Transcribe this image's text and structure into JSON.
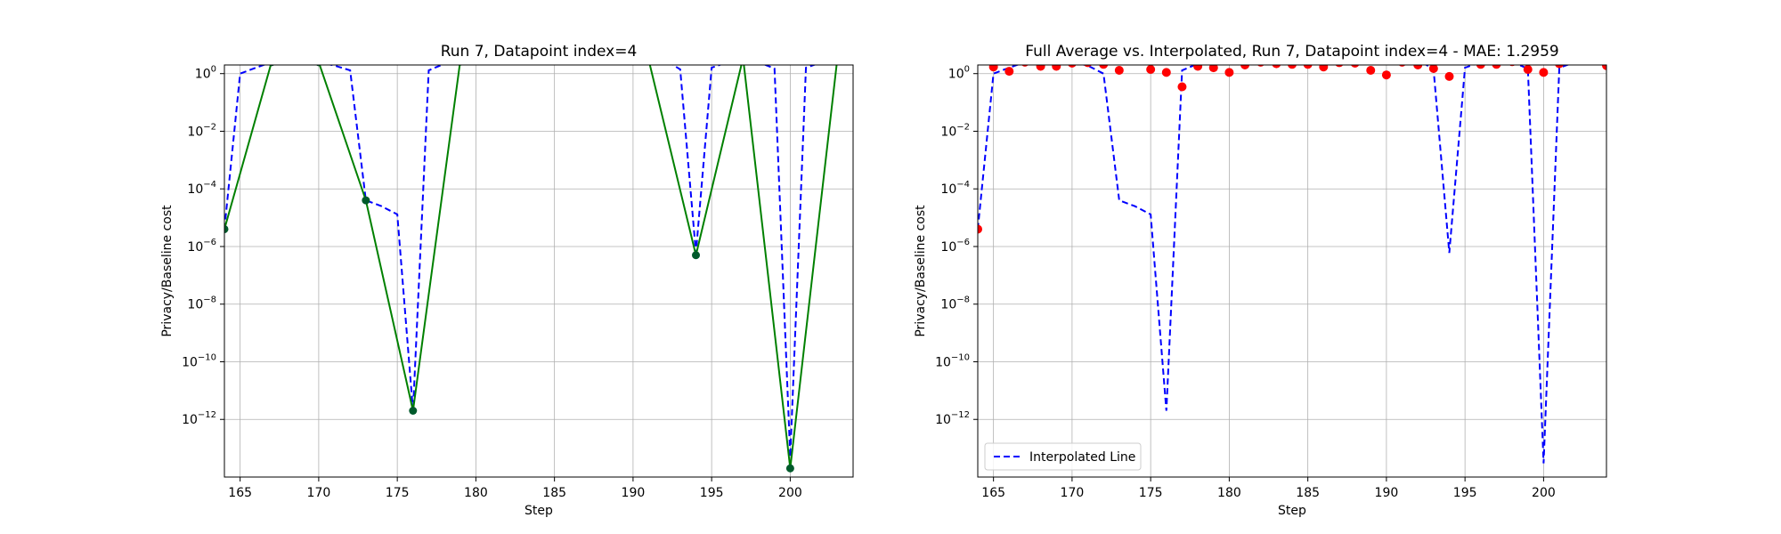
{
  "chart_data": [
    {
      "type": "line",
      "title": "Run 7, Datapoint index=4",
      "xlabel": "Step",
      "ylabel": "Privacy/Baseline cost",
      "xlim": [
        164,
        204
      ],
      "ylim_exponent": [
        -14,
        0.3
      ],
      "yscale": "log",
      "grid": true,
      "x_ticks": [
        165,
        170,
        175,
        180,
        185,
        190,
        195,
        200
      ],
      "y_ticks": [
        {
          "base": "10",
          "exp": "0",
          "value": 1
        },
        {
          "base": "10",
          "exp": "−2",
          "value": 0.01
        },
        {
          "base": "10",
          "exp": "−4",
          "value": 0.0001
        },
        {
          "base": "10",
          "exp": "−6",
          "value": 1e-06
        },
        {
          "base": "10",
          "exp": "−8",
          "value": 1e-08
        },
        {
          "base": "10",
          "exp": "−10",
          "value": 1e-10
        },
        {
          "base": "10",
          "exp": "−12",
          "value": 1e-12
        }
      ],
      "series": [
        {
          "style": "dashed",
          "color": "#0000ff",
          "x": [
            164,
            165,
            166,
            167,
            168,
            169,
            170,
            171,
            172,
            173,
            174,
            175,
            176,
            177,
            178,
            179,
            180,
            181,
            182,
            183,
            184,
            185,
            186,
            187,
            188,
            189,
            190,
            191,
            192,
            193,
            194,
            195,
            196,
            197,
            198,
            199,
            200,
            201,
            202,
            203
          ],
          "y": [
            4e-06,
            1.0,
            1.6,
            2.5,
            2.5,
            2.5,
            2.5,
            1.9,
            1.3,
            4e-05,
            2.5e-05,
            1.3e-05,
            2e-12,
            1.3,
            2.2,
            3.0,
            3.2,
            3.3,
            3.3,
            3.3,
            3.3,
            3.3,
            3.2,
            3.0,
            2.9,
            3.0,
            3.1,
            3.2,
            3.1,
            1.4,
            6e-07,
            1.6,
            2.5,
            3.5,
            2.5,
            1.5,
            5e-14,
            1.6,
            2.5,
            3.5
          ]
        },
        {
          "style": "solid-markers",
          "color": "#008000",
          "marker_color": "#005a2b",
          "x": [
            164,
            167,
            170,
            173,
            176,
            179,
            182,
            185,
            188,
            191,
            194,
            197,
            200,
            203
          ],
          "y": [
            4e-06,
            2.5,
            2.5,
            4e-05,
            2e-12,
            2.6,
            3.2,
            3.1,
            3.0,
            2.9,
            5e-07,
            3.5,
            2e-14,
            3.4
          ]
        }
      ]
    },
    {
      "type": "scatter",
      "title": "Full Average vs. Interpolated, Run 7, Datapoint index=4 - MAE: 1.2959",
      "xlabel": "Step",
      "ylabel": "Privacy/Baseline cost",
      "xlim": [
        164,
        204
      ],
      "ylim_exponent": [
        -14,
        0.3
      ],
      "yscale": "log",
      "grid": true,
      "legend_position": "lower-left",
      "x_ticks": [
        165,
        170,
        175,
        180,
        185,
        190,
        195,
        200
      ],
      "y_ticks": [
        {
          "base": "10",
          "exp": "0",
          "value": 1
        },
        {
          "base": "10",
          "exp": "−2",
          "value": 0.01
        },
        {
          "base": "10",
          "exp": "−4",
          "value": 0.0001
        },
        {
          "base": "10",
          "exp": "−6",
          "value": 1e-06
        },
        {
          "base": "10",
          "exp": "−8",
          "value": 1e-08
        },
        {
          "base": "10",
          "exp": "−10",
          "value": 1e-10
        },
        {
          "base": "10",
          "exp": "−12",
          "value": 1e-12
        }
      ],
      "series": [
        {
          "name": "Interpolated Line",
          "style": "dashed",
          "color": "#0000ff",
          "x": [
            164,
            165,
            166,
            167,
            168,
            169,
            170,
            171,
            172,
            173,
            174,
            175,
            176,
            177,
            178,
            179,
            180,
            181,
            182,
            183,
            184,
            185,
            186,
            187,
            188,
            189,
            190,
            191,
            192,
            193,
            194,
            195,
            196,
            197,
            198,
            199,
            200,
            201,
            202,
            203,
            204
          ],
          "y": [
            4e-06,
            1.0,
            1.6,
            2.5,
            2.5,
            2.5,
            2.5,
            1.9,
            1.0,
            4e-05,
            2.5e-05,
            1.3e-05,
            2e-12,
            1.3,
            2.2,
            3.0,
            3.2,
            3.3,
            3.3,
            3.3,
            3.3,
            3.3,
            3.2,
            3.0,
            2.9,
            3.0,
            3.1,
            3.2,
            3.1,
            1.4,
            6e-07,
            1.6,
            2.5,
            3.5,
            2.5,
            1.5,
            3e-14,
            1.6,
            2.5,
            3.5,
            3.3
          ]
        },
        {
          "style": "scatter",
          "color": "#ff0000",
          "x": [
            164,
            165,
            166,
            167,
            168,
            169,
            170,
            171,
            172,
            173,
            174,
            175,
            176,
            177,
            178,
            179,
            180,
            181,
            182,
            183,
            184,
            185,
            186,
            187,
            188,
            189,
            190,
            191,
            192,
            193,
            194,
            195,
            196,
            197,
            198,
            199,
            200,
            201,
            202,
            203,
            204
          ],
          "y": [
            4e-06,
            1.7,
            1.2,
            2.5,
            1.8,
            1.8,
            2.3,
            2.4,
            2.1,
            1.3,
            2.8,
            1.4,
            1.1,
            0.35,
            1.8,
            1.6,
            1.1,
            2.0,
            2.5,
            2.2,
            2.1,
            2.1,
            1.7,
            2.4,
            2.3,
            1.3,
            0.9,
            2.5,
            2.0,
            1.5,
            0.8,
            2.9,
            2.1,
            2.1,
            2.6,
            1.4,
            1.1,
            2.2,
            2.9,
            3.0,
            1.9
          ]
        }
      ]
    }
  ]
}
